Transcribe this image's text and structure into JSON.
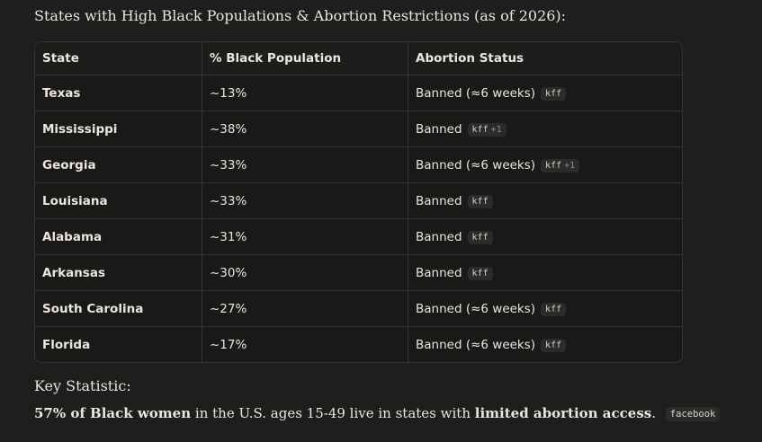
{
  "heading": "States with High Black Populations & Abortion Restrictions (as of 2026):",
  "table": {
    "columns": [
      "State",
      "% Black Population",
      "Abortion Status"
    ],
    "rows": [
      {
        "state": "Texas",
        "pct": "~13%",
        "status": "Banned (≈6 weeks)",
        "badge": "kff"
      },
      {
        "state": "Mississippi",
        "pct": "~38%",
        "status": "Banned",
        "badge": "kff",
        "extra": "+1"
      },
      {
        "state": "Georgia",
        "pct": "~33%",
        "status": "Banned (≈6 weeks)",
        "badge": "kff",
        "extra": "+1"
      },
      {
        "state": "Louisiana",
        "pct": "~33%",
        "status": "Banned",
        "badge": "kff"
      },
      {
        "state": "Alabama",
        "pct": "~31%",
        "status": "Banned",
        "badge": "kff"
      },
      {
        "state": "Arkansas",
        "pct": "~30%",
        "status": "Banned",
        "badge": "kff"
      },
      {
        "state": "South Carolina",
        "pct": "~27%",
        "status": "Banned (≈6 weeks)",
        "badge": "kff"
      },
      {
        "state": "Florida",
        "pct": "~17%",
        "status": "Banned (≈6 weeks)",
        "badge": "kff"
      }
    ]
  },
  "key_statistic": {
    "title": "Key Statistic:",
    "parts": [
      "57% of Black women",
      "in the U.S. ages 15-49 live in states with",
      "limited abortion access",
      "."
    ],
    "badge": "facebook"
  }
}
